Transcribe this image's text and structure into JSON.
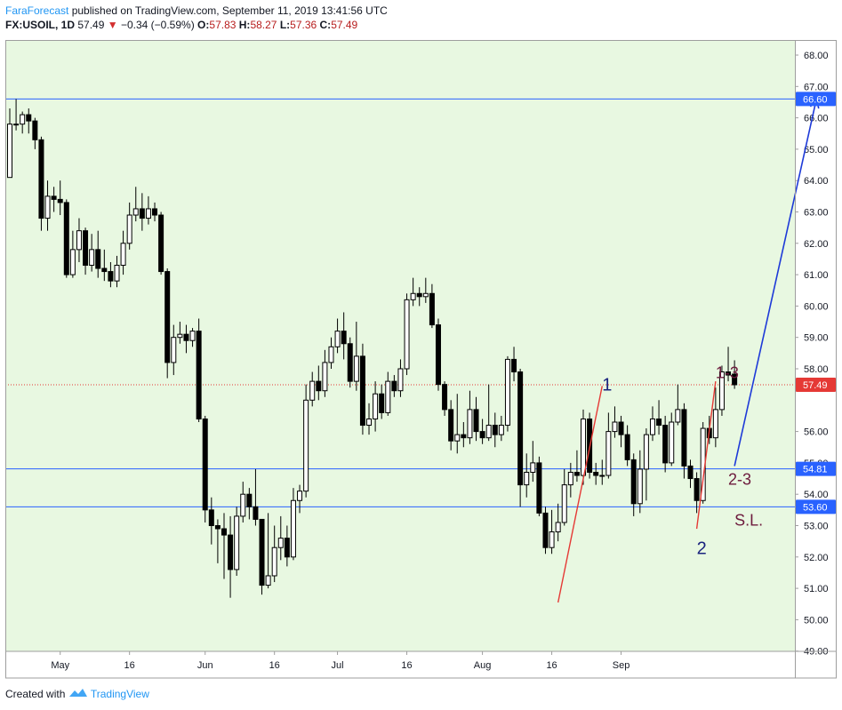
{
  "header": {
    "author": "FaraForecast",
    "published": "published on TradingView.com, September 11, 2019 13:41:56 UTC",
    "symbol": "FX:USOIL, 1D",
    "last": "57.49",
    "arrow": "▼",
    "change": "−0.34 (−0.59%)",
    "o_label": "O:",
    "o": "57.83",
    "h_label": "H:",
    "h": "58.27",
    "l_label": "L:",
    "l": "57.36",
    "c_label": "C:",
    "c": "57.49"
  },
  "footer": {
    "created": "Created with",
    "brand": "TradingView"
  },
  "colors": {
    "plot_bg": "#e8f8e1",
    "level_line": "#2962ff",
    "price_line": "#e53935",
    "wave_red": "#e53935",
    "projection": "#1e3ad8",
    "annotation_navy": "#1a237e",
    "annotation_maroon": "#6d1b3d",
    "price_label_red": "#e53935",
    "price_label_blue": "#2962ff"
  },
  "chart_data": {
    "type": "candlestick",
    "symbol": "FX:USOIL",
    "timeframe": "1D",
    "ylim": [
      49.0,
      68.5
    ],
    "y_ticks": [
      "68.00",
      "67.00",
      "66.00",
      "65.00",
      "64.00",
      "63.00",
      "62.00",
      "61.00",
      "60.00",
      "59.00",
      "58.00",
      "56.00",
      "55.00",
      "54.00",
      "53.00",
      "52.00",
      "51.00",
      "50.00",
      "49.00"
    ],
    "x_ticks": [
      {
        "label": "May",
        "i": 8
      },
      {
        "label": "16",
        "i": 19
      },
      {
        "label": "Jun",
        "i": 31
      },
      {
        "label": "16",
        "i": 42
      },
      {
        "label": "Jul",
        "i": 52
      },
      {
        "label": "16",
        "i": 63
      },
      {
        "label": "Aug",
        "i": 75
      },
      {
        "label": "16",
        "i": 86
      },
      {
        "label": "Sep",
        "i": 97
      }
    ],
    "candles": [
      [
        64.1,
        65.8,
        66.3,
        64.1
      ],
      [
        65.8,
        65.8,
        66.6,
        65.6
      ],
      [
        65.8,
        66.1,
        66.2,
        65.5
      ],
      [
        66.1,
        65.9,
        66.3,
        65.5
      ],
      [
        65.9,
        65.3,
        66.0,
        65.0
      ],
      [
        65.3,
        62.8,
        65.4,
        62.4
      ],
      [
        62.8,
        63.5,
        64.0,
        62.4
      ],
      [
        63.5,
        63.4,
        63.8,
        63.0
      ],
      [
        63.4,
        63.3,
        64.0,
        62.9
      ],
      [
        63.3,
        61.0,
        63.4,
        60.9
      ],
      [
        61.0,
        61.8,
        62.4,
        60.9
      ],
      [
        61.8,
        62.4,
        62.8,
        61.4
      ],
      [
        62.4,
        61.3,
        62.5,
        61.0
      ],
      [
        61.3,
        61.8,
        62.3,
        61.1
      ],
      [
        61.8,
        61.2,
        62.4,
        60.9
      ],
      [
        61.2,
        61.1,
        61.8,
        60.8
      ],
      [
        61.1,
        60.8,
        61.4,
        60.6
      ],
      [
        60.8,
        61.3,
        61.6,
        60.6
      ],
      [
        61.3,
        62.0,
        62.4,
        61.0
      ],
      [
        62.0,
        62.9,
        63.3,
        61.8
      ],
      [
        62.9,
        63.1,
        63.8,
        62.7
      ],
      [
        63.1,
        62.8,
        63.6,
        62.4
      ],
      [
        62.8,
        63.1,
        63.5,
        62.6
      ],
      [
        63.1,
        62.9,
        63.3,
        62.7
      ],
      [
        62.9,
        61.1,
        63.0,
        61.0
      ],
      [
        61.1,
        58.2,
        61.2,
        57.7
      ],
      [
        58.2,
        59.0,
        59.4,
        57.8
      ],
      [
        59.0,
        59.1,
        59.5,
        58.8
      ],
      [
        59.1,
        58.9,
        59.4,
        58.5
      ],
      [
        58.9,
        59.2,
        59.3,
        58.7
      ],
      [
        59.2,
        56.4,
        59.6,
        56.3
      ],
      [
        56.4,
        53.5,
        56.5,
        53.1
      ],
      [
        53.5,
        53.0,
        53.9,
        52.4
      ],
      [
        53.0,
        52.9,
        53.2,
        51.8
      ],
      [
        52.9,
        52.7,
        53.4,
        51.3
      ],
      [
        52.7,
        51.6,
        53.3,
        50.7
      ],
      [
        51.6,
        53.3,
        53.6,
        51.4
      ],
      [
        53.3,
        54.0,
        54.4,
        53.1
      ],
      [
        54.0,
        53.6,
        54.2,
        53.2
      ],
      [
        53.6,
        53.2,
        54.8,
        53.0
      ],
      [
        53.2,
        51.1,
        53.2,
        50.8
      ],
      [
        51.1,
        51.4,
        53.4,
        51.0
      ],
      [
        51.4,
        52.3,
        53.0,
        51.2
      ],
      [
        52.3,
        52.6,
        53.3,
        51.9
      ],
      [
        52.6,
        52.0,
        53.0,
        51.7
      ],
      [
        52.0,
        53.8,
        54.2,
        51.9
      ],
      [
        53.8,
        54.1,
        54.3,
        53.4
      ],
      [
        54.1,
        57.0,
        57.5,
        53.9
      ],
      [
        57.0,
        57.6,
        57.9,
        56.8
      ],
      [
        57.6,
        57.3,
        58.1,
        57.0
      ],
      [
        57.3,
        58.2,
        58.6,
        57.1
      ],
      [
        58.2,
        58.7,
        59.0,
        58.0
      ],
      [
        58.7,
        59.2,
        59.6,
        58.5
      ],
      [
        59.2,
        58.8,
        59.8,
        58.3
      ],
      [
        58.8,
        57.6,
        59.0,
        57.4
      ],
      [
        57.6,
        58.4,
        59.5,
        57.3
      ],
      [
        58.4,
        56.2,
        58.8,
        55.9
      ],
      [
        56.2,
        56.4,
        56.9,
        55.9
      ],
      [
        56.4,
        57.2,
        57.6,
        56.0
      ],
      [
        57.2,
        56.6,
        57.5,
        56.4
      ],
      [
        56.6,
        57.6,
        57.9,
        56.5
      ],
      [
        57.6,
        57.3,
        57.8,
        57.1
      ],
      [
        57.3,
        58.0,
        58.3,
        57.1
      ],
      [
        58.0,
        60.2,
        60.4,
        57.8
      ],
      [
        60.2,
        60.4,
        60.9,
        60.0
      ],
      [
        60.4,
        60.3,
        60.6,
        60.0
      ],
      [
        60.3,
        60.4,
        60.9,
        60.1
      ],
      [
        60.4,
        59.4,
        60.7,
        59.3
      ],
      [
        59.4,
        57.5,
        59.6,
        57.3
      ],
      [
        57.5,
        56.7,
        57.6,
        56.5
      ],
      [
        56.7,
        55.7,
        57.0,
        55.4
      ],
      [
        55.7,
        55.9,
        57.2,
        55.3
      ],
      [
        55.9,
        55.8,
        56.3,
        55.5
      ],
      [
        55.8,
        56.7,
        57.3,
        55.6
      ],
      [
        56.7,
        56.0,
        57.1,
        55.7
      ],
      [
        56.0,
        55.8,
        56.4,
        55.6
      ],
      [
        55.8,
        56.2,
        57.5,
        55.7
      ],
      [
        56.2,
        55.9,
        56.6,
        55.5
      ],
      [
        55.9,
        56.2,
        56.5,
        55.7
      ],
      [
        56.2,
        58.3,
        58.4,
        56.0
      ],
      [
        58.3,
        57.9,
        58.7,
        57.6
      ],
      [
        57.9,
        54.3,
        58.0,
        53.6
      ],
      [
        54.3,
        54.7,
        55.3,
        53.9
      ],
      [
        54.7,
        55.0,
        55.7,
        54.4
      ],
      [
        55.0,
        53.4,
        55.2,
        53.3
      ],
      [
        53.4,
        52.3,
        53.6,
        52.1
      ],
      [
        52.3,
        52.8,
        53.5,
        52.1
      ],
      [
        52.8,
        53.1,
        53.7,
        52.5
      ],
      [
        53.1,
        54.3,
        54.8,
        53.0
      ],
      [
        54.3,
        54.7,
        55.0,
        53.9
      ],
      [
        54.7,
        54.6,
        55.4,
        54.4
      ],
      [
        54.6,
        56.4,
        56.7,
        54.3
      ],
      [
        56.4,
        54.7,
        56.6,
        54.5
      ],
      [
        54.7,
        54.6,
        55.0,
        54.3
      ],
      [
        54.6,
        54.6,
        55.1,
        54.3
      ],
      [
        54.6,
        56.0,
        56.6,
        54.5
      ],
      [
        56.0,
        56.3,
        56.8,
        55.8
      ],
      [
        56.3,
        55.9,
        56.5,
        55.5
      ],
      [
        55.9,
        55.1,
        56.2,
        54.9
      ],
      [
        55.1,
        53.7,
        55.3,
        53.3
      ],
      [
        53.7,
        54.8,
        55.4,
        53.4
      ],
      [
        54.8,
        55.9,
        56.1,
        53.8
      ],
      [
        55.9,
        56.4,
        56.8,
        55.7
      ],
      [
        56.4,
        56.2,
        57.0,
        55.9
      ],
      [
        56.2,
        55.0,
        56.5,
        54.7
      ],
      [
        55.0,
        56.3,
        56.6,
        54.9
      ],
      [
        56.3,
        56.7,
        57.5,
        56.2
      ],
      [
        56.7,
        54.9,
        56.9,
        54.5
      ],
      [
        54.9,
        54.5,
        55.1,
        54.2
      ],
      [
        54.5,
        53.8,
        54.7,
        53.4
      ],
      [
        53.8,
        56.1,
        56.3,
        53.7
      ],
      [
        56.1,
        55.8,
        56.5,
        55.6
      ],
      [
        55.8,
        56.7,
        57.4,
        55.5
      ],
      [
        56.7,
        57.9,
        58.1,
        56.5
      ],
      [
        57.9,
        57.8,
        58.7,
        57.6
      ],
      [
        57.83,
        57.49,
        58.27,
        57.36
      ]
    ],
    "levels": [
      {
        "value": 66.6,
        "label": "66.60"
      },
      {
        "value": 54.81,
        "label": "54.81"
      },
      {
        "value": 53.6,
        "label": "53.60"
      }
    ],
    "last_price": {
      "value": 57.49,
      "label": "57.49"
    },
    "annotations": [
      {
        "text": "1",
        "i": 94,
        "price": 57.3
      },
      {
        "text": "2",
        "i": 109,
        "price": 52.1
      },
      {
        "text": "1-3",
        "i": 112,
        "price": 57.7
      },
      {
        "text": "2-3",
        "i": 114,
        "price": 54.3
      },
      {
        "text": "S.L.",
        "i": 115,
        "price": 53.0
      }
    ],
    "drawings": [
      {
        "type": "wave",
        "from": {
          "i": 87,
          "price": 50.55
        },
        "to": {
          "i": 94,
          "price": 57.45
        }
      },
      {
        "type": "wave",
        "from": {
          "i": 109,
          "price": 52.9
        },
        "to": {
          "i": 112,
          "price": 57.6
        }
      },
      {
        "type": "projection",
        "from": {
          "i": 115,
          "price": 54.9
        },
        "to": {
          "i": 128,
          "price": 66.6
        }
      }
    ]
  }
}
